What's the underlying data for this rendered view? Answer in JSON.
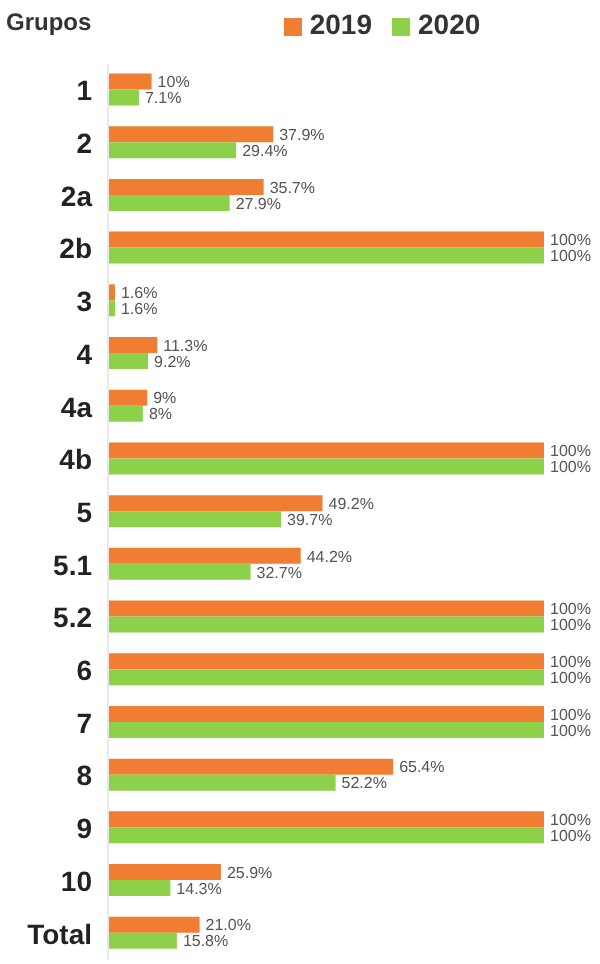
{
  "chart_data": {
    "type": "bar",
    "orientation": "horizontal",
    "ylabel": "Grupos",
    "legend": "top",
    "categories": [
      "1",
      "2",
      "2a",
      "2b",
      "3",
      "4",
      "4a",
      "4b",
      "5",
      "5.1",
      "5.2",
      "6",
      "7",
      "8",
      "9",
      "10",
      "Total"
    ],
    "series": [
      {
        "name": "2019",
        "color": "#f07d32",
        "values": [
          10,
          37.9,
          35.7,
          100,
          1.6,
          11.3,
          9,
          100,
          49.2,
          44.2,
          100,
          100,
          100,
          65.4,
          100,
          25.9,
          21.0
        ],
        "value_labels": [
          "10%",
          "37.9%",
          "35.7%",
          "100%",
          "1.6%",
          "11.3%",
          "9%",
          "100%",
          "49.2%",
          "44.2%",
          "100%",
          "100%",
          "100%",
          "65.4%",
          "100%",
          "25.9%",
          "21.0%"
        ]
      },
      {
        "name": "2020",
        "color": "#8dd04a",
        "values": [
          7.1,
          29.4,
          27.9,
          100,
          1.6,
          9.2,
          8,
          100,
          39.7,
          32.7,
          100,
          100,
          100,
          52.2,
          100,
          14.3,
          15.8
        ],
        "value_labels": [
          "7.1%",
          "29.4%",
          "27.9%",
          "100%",
          "1.6%",
          "9.2%",
          "8%",
          "100%",
          "39.7%",
          "32.7%",
          "100%",
          "100%",
          "100%",
          "52.2%",
          "100%",
          "14.3%",
          "15.8%"
        ]
      }
    ]
  }
}
